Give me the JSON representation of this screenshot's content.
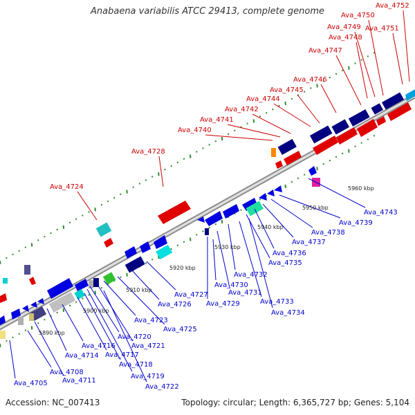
{
  "title": "Anabaena variabilis ATCC 29413, complete genome",
  "footer": {
    "accession": "Accession: NC_007413",
    "stats": "Topology: circular; Length: 6,365,727 bp; Genes: 5,104"
  },
  "colors": {
    "axis": "#909090",
    "tick": "#2e8b2e",
    "label_forward": "#cc0000",
    "label_reverse": "#0000cc",
    "scale_text": "#222222"
  },
  "scale_labels": [
    "5890 kbp",
    "5900 kbp",
    "5910 kbp",
    "5920 kbp",
    "5930 kbp",
    "5940 kbp",
    "5950 kbp",
    "5960 kbp"
  ],
  "forward_labels": [
    "Ava_4724",
    "Ava_4728",
    "Ava_4740",
    "Ava_4741",
    "Ava_4742",
    "Ava_4744",
    "Ava_4745",
    "Ava_4746",
    "Ava_4747",
    "Ava_4748",
    "Ava_4749",
    "Ava_4750",
    "Ava_4751",
    "Ava_4752"
  ],
  "reverse_labels": [
    "Ava_4705",
    "Ava_4708",
    "Ava_4711",
    "Ava_4714",
    "Ava_4716",
    "Ava_4717",
    "Ava_4718",
    "Ava_4719",
    "Ava_4720",
    "Ava_4721",
    "Ava_4722",
    "Ava_4723",
    "Ava_4725",
    "Ava_4726",
    "Ava_4727",
    "Ava_4729",
    "Ava_4730",
    "Ava_4731",
    "Ava_4732",
    "Ava_4733",
    "Ava_4734",
    "Ava_4735",
    "Ava_4736",
    "Ava_4737",
    "Ava_4738",
    "Ava_4739",
    "Ava_4743"
  ]
}
